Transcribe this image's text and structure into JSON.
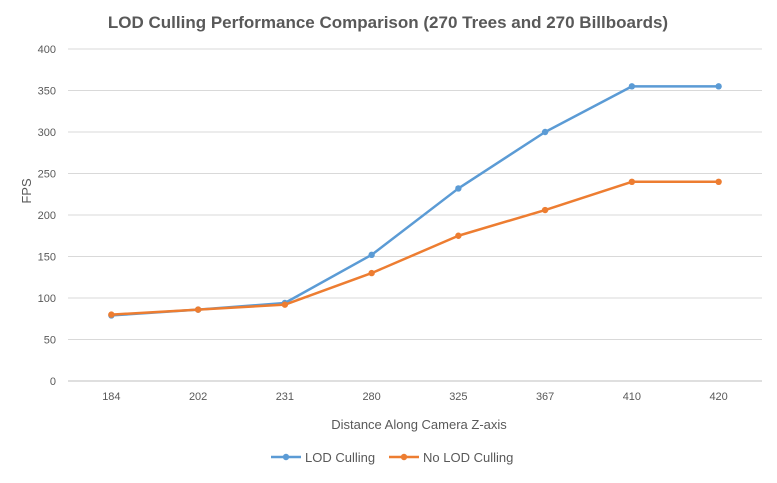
{
  "chart_data": {
    "type": "line",
    "title": "LOD Culling Performance Comparison (270 Trees and 270 Billboards)",
    "xlabel": "Distance Along Camera Z-axis",
    "ylabel": "FPS",
    "categories": [
      "184",
      "202",
      "231",
      "280",
      "325",
      "367",
      "410",
      "420"
    ],
    "ylim": [
      0,
      400
    ],
    "yticks": [
      0,
      50,
      100,
      150,
      200,
      250,
      300,
      350,
      400
    ],
    "grid": true,
    "legend_position": "bottom",
    "series": [
      {
        "name": "LOD Culling",
        "color": "#5B9BD5",
        "values": [
          79,
          86,
          94,
          152,
          232,
          300,
          355,
          355
        ]
      },
      {
        "name": "No LOD Culling",
        "color": "#ED7D31",
        "values": [
          80,
          86,
          92,
          130,
          175,
          206,
          240,
          240
        ]
      }
    ]
  }
}
